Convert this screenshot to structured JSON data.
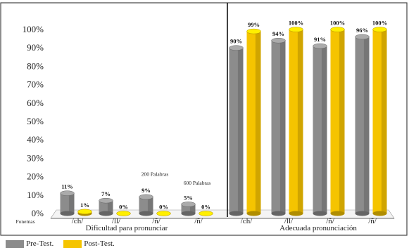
{
  "chart_data": {
    "type": "bar",
    "title": "",
    "xlabel": "",
    "ylabel": "",
    "ylim": [
      0,
      100
    ],
    "y_ticks": [
      "0%",
      "10%",
      "20%",
      "30%",
      "40%",
      "50%",
      "60%",
      "70%",
      "80%",
      "90%",
      "100%"
    ],
    "x_axis_caption": "Fonemas",
    "groups": [
      {
        "name": "Dificultad para pronunciar",
        "categories": [
          "/ch/",
          "/ll/",
          "/ñ/",
          "/ñ/"
        ]
      },
      {
        "name": "Adecuada pronunciación",
        "categories": [
          "/ch/",
          "/ll/",
          "/ñ/",
          "/ñ/"
        ]
      }
    ],
    "categories": [
      "/ch/",
      "/ll/",
      "/ñ/",
      "/ñ/",
      "/ch/",
      "/ll/",
      "/ñ/",
      "/ñ/"
    ],
    "series": [
      {
        "name": "Pre-Test.",
        "color": "#8c8c8c",
        "values": [
          11,
          7,
          9,
          5,
          90,
          94,
          91,
          96
        ],
        "labels": [
          "11%",
          "7%",
          "9%",
          "5%",
          "90%",
          "94%",
          "91%",
          "96%"
        ]
      },
      {
        "name": "Post-Test.",
        "color": "#f5c400",
        "values": [
          1,
          0,
          0,
          0,
          99,
          100,
          100,
          100
        ],
        "labels": [
          "1%",
          "0%",
          "0%",
          "0%",
          "99%",
          "100%",
          "100%",
          "100%"
        ]
      }
    ],
    "annotations": [
      {
        "text": "200 Palabras",
        "category_index": 2
      },
      {
        "text": "600 Palabras",
        "category_index": 3
      }
    ],
    "legend": {
      "position": "bottom-left"
    },
    "grid": false
  }
}
